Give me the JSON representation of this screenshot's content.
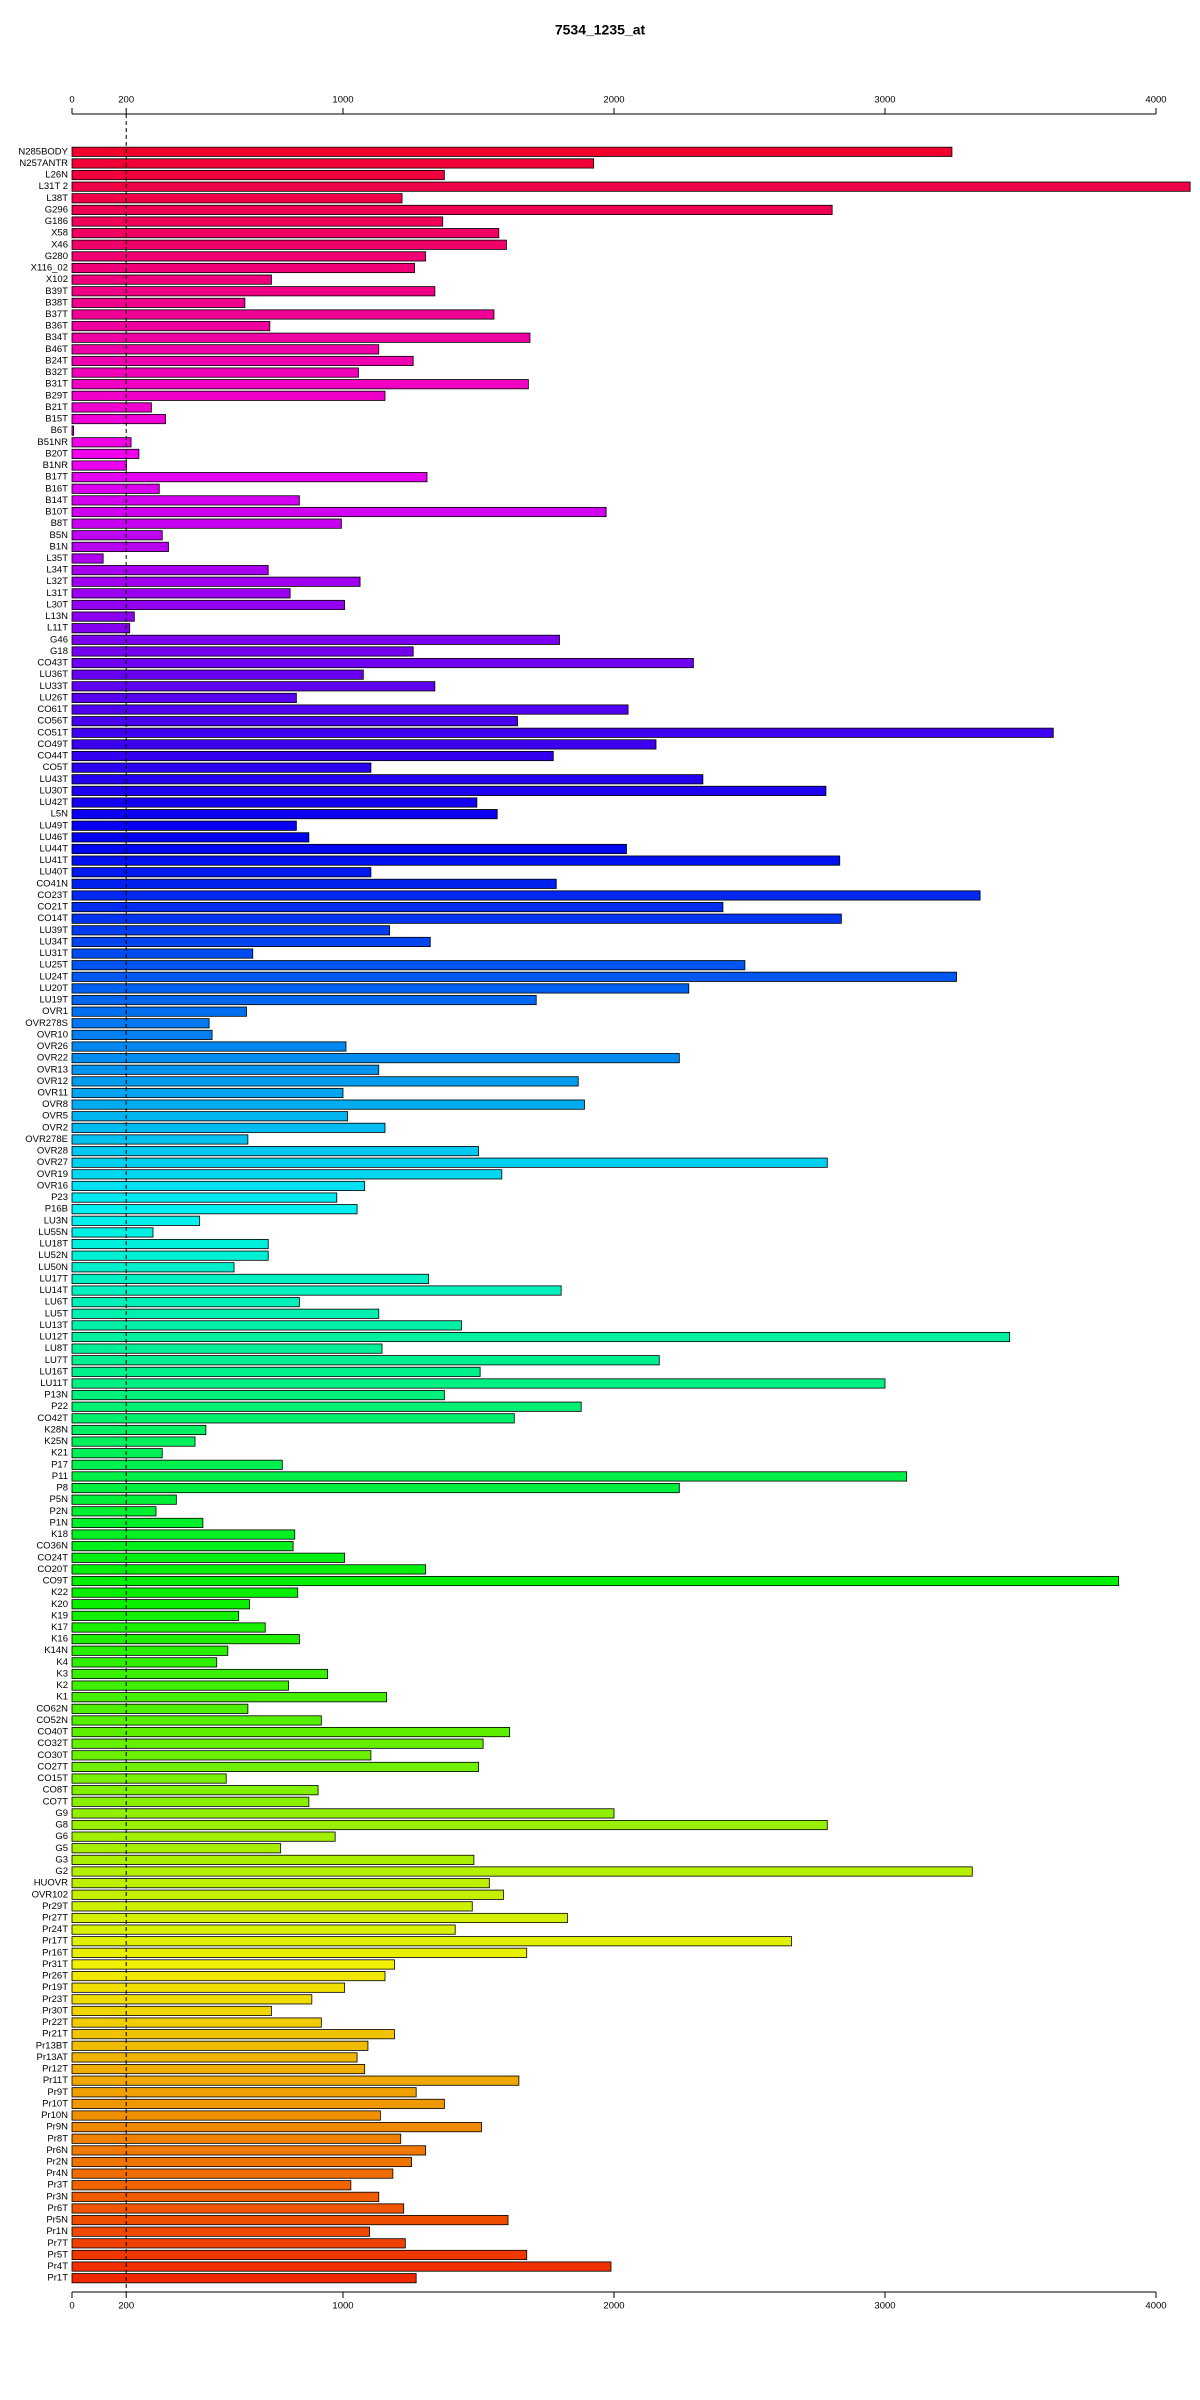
{
  "chart_data": {
    "type": "hbar",
    "title": "7534_1235_at",
    "categories": [
      "N285BODY",
      "N257ANTR",
      "L26N",
      "L31T 2",
      "L38T",
      "G296",
      "G186",
      "X58",
      "X46",
      "G280",
      "X116_02",
      "X102",
      "B39T",
      "B38T",
      "B37T",
      "B36T",
      "B34T",
      "B46T",
      "B24T",
      "B32T",
      "B31T",
      "B29T",
      "B21T",
      "B15T",
      "B6T",
      "B51NR",
      "B20T",
      "B1NR",
      "B17T",
      "B16T",
      "B14T",
      "B10T",
      "B8T",
      "B5N",
      "B1N",
      "L35T",
      "L34T",
      "L32T",
      "L31T",
      "L30T",
      "L13N",
      "L11T",
      "G46",
      "G18",
      "CO43T",
      "LU36T",
      "LU33T",
      "LU26T",
      "CO61T",
      "CO56T",
      "CO51T",
      "CO49T",
      "CO44T",
      "CO5T",
      "LU43T",
      "LU30T",
      "LU42T",
      "L5N",
      "LU49T",
      "LU46T",
      "LU44T",
      "LU41T",
      "LU40T",
      "CO41N",
      "CO23T",
      "CO21T",
      "CO14T",
      "LU39T",
      "LU34T",
      "LU31T",
      "LU25T",
      "LU24T",
      "LU20T",
      "LU19T",
      "OVR1",
      "OVR278S",
      "OVR10",
      "OVR26",
      "OVR22",
      "OVR13",
      "OVR12",
      "OVR11",
      "OVR8",
      "OVR5",
      "OVR2",
      "OVR278E",
      "OVR28",
      "OVR27",
      "OVR19",
      "OVR16",
      "P23",
      "P16B",
      "LU3N",
      "LU55N",
      "LU18T",
      "LU52N",
      "LU50N",
      "LU17T",
      "LU14T",
      "LU6T",
      "LU5T",
      "LU13T",
      "LU12T",
      "LU8T",
      "LU7T",
      "LU16T",
      "LU11T",
      "P13N",
      "P22",
      "CO42T",
      "K28N",
      "K25N",
      "K21",
      "P17",
      "P11",
      "P8",
      "P5N",
      "P2N",
      "P1N",
      "K18",
      "CO36N",
      "CO24T",
      "CO20T",
      "CO9T",
      "K22",
      "K20",
      "K19",
      "K17",
      "K16",
      "K14N",
      "K4",
      "K3",
      "K2",
      "K1",
      "CO62N",
      "CO52N",
      "CO40T",
      "CO32T",
      "CO30T",
      "CO27T",
      "CO15T",
      "CO8T",
      "CO7T",
      "G9",
      "G8",
      "G6",
      "G5",
      "G3",
      "G2",
      "HUOVR",
      "OVR102",
      "Pr29T",
      "Pr27T",
      "Pr24T",
      "Pr17T",
      "Pr16T",
      "Pr31T",
      "Pr26T",
      "Pr19T",
      "Pr23T",
      "Pr30T",
      "Pr22T",
      "Pr21T",
      "Pr13BT",
      "Pr13AT",
      "Pr12T",
      "Pr11T",
      "Pr9T",
      "Pr10T",
      "Pr10N",
      "Pr9N",
      "Pr8T",
      "Pr6N",
      "Pr2N",
      "Pr4N",
      "Pr3T",
      "Pr3N",
      "Pr6T",
      "Pr5N",
      "Pr1N",
      "Pr7T",
      "Pr5T",
      "Pr4T",
      "Pr1T"
    ],
    "values": [
      3247,
      1925,
      1374,
      4126,
      1218,
      2805,
      1368,
      1575,
      1603,
      1305,
      1264,
      736,
      1339,
      638,
      1557,
      730,
      1690,
      1132,
      1259,
      1057,
      1684,
      1155,
      293,
      345,
      6,
      218,
      247,
      201,
      1310,
      322,
      839,
      1971,
      994,
      333,
      356,
      115,
      724,
      1063,
      805,
      1006,
      230,
      213,
      1799,
      1259,
      2293,
      1075,
      1339,
      828,
      2052,
      1644,
      3621,
      2155,
      1776,
      1103,
      2328,
      2782,
      1494,
      1569,
      828,
      874,
      2046,
      2833,
      1103,
      1787,
      3351,
      2402,
      2839,
      1172,
      1322,
      667,
      2483,
      3264,
      2276,
      1713,
      644,
      506,
      517,
      1011,
      2241,
      1132,
      1868,
      1000,
      1891,
      1017,
      1155,
      649,
      1500,
      2787,
      1586,
      1080,
      977,
      1052,
      471,
      299,
      724,
      724,
      598,
      1316,
      1805,
      839,
      1132,
      1437,
      3460,
      1144,
      2167,
      1506,
      3000,
      1374,
      1879,
      1632,
      494,
      454,
      333,
      776,
      3080,
      2241,
      385,
      310,
      483,
      822,
      816,
      1006,
      1305,
      3862,
      833,
      655,
      615,
      713,
      839,
      575,
      534,
      943,
      799,
      1161,
      649,
      920,
      1615,
      1517,
      1103,
      1500,
      569,
      908,
      874,
      2000,
      2787,
      971,
      770,
      1483,
      3322,
      1540,
      1592,
      1477,
      1828,
      1414,
      2655,
      1678,
      1190,
      1155,
      1006,
      885,
      736,
      920,
      1190,
      1092,
      1052,
      1080,
      1649,
      1270,
      1374,
      1138,
      1511,
      1213,
      1305,
      1253,
      1184,
      1029,
      1132,
      1224,
      1609,
      1098,
      1230,
      1678,
      1989,
      1270
    ],
    "colors": [
      "hsl(349,100%,47%)",
      "hsl(347,100%,47%)",
      "hsl(345,100%,47%)",
      "hsl(343,100%,47%)",
      "hsl(342,100%,47%)",
      "hsl(340,100%,47%)",
      "hsl(338,100%,47%)",
      "hsl(336,100%,47%)",
      "hsl(334,100%,47%)",
      "hsl(332,100%,47%)",
      "hsl(330,100%,47%)",
      "hsl(329,100%,47%)",
      "hsl(327,100%,47%)",
      "hsl(325,100%,47%)",
      "hsl(323,100%,47%)",
      "hsl(321,100%,47%)",
      "hsl(319,100%,47%)",
      "hsl(318,100%,47%)",
      "hsl(316,100%,47%)",
      "hsl(314,100%,47%)",
      "hsl(312,100%,47%)",
      "hsl(310,100%,47%)",
      "hsl(308,100%,47%)",
      "hsl(306,100%,47%)",
      "hsl(305,100%,47%)",
      "hsl(303,100%,47%)",
      "hsl(301,100%,47%)",
      "hsl(299,100%,47%)",
      "hsl(297,100%,47%)",
      "hsl(295,100%,47%)",
      "hsl(293,100%,47%)",
      "hsl(292,100%,47%)",
      "hsl(290,100%,47%)",
      "hsl(288,100%,47%)",
      "hsl(286,100%,47%)",
      "hsl(284,100%,47%)",
      "hsl(282,100%,47%)",
      "hsl(280,100%,47%)",
      "hsl(279,100%,47%)",
      "hsl(277,100%,47%)",
      "hsl(275,100%,47%)",
      "hsl(273,100%,47%)",
      "hsl(271,100%,47%)",
      "hsl(269,100%,47%)",
      "hsl(268,100%,47%)",
      "hsl(266,100%,47%)",
      "hsl(264,100%,47%)",
      "hsl(262,100%,47%)",
      "hsl(260,100%,47%)",
      "hsl(258,100%,47%)",
      "hsl(256,100%,47%)",
      "hsl(255,100%,47%)",
      "hsl(253,100%,47%)",
      "hsl(251,100%,47%)",
      "hsl(249,100%,47%)",
      "hsl(247,100%,47%)",
      "hsl(245,100%,47%)",
      "hsl(243,100%,47%)",
      "hsl(242,100%,47%)",
      "hsl(240,100%,47%)",
      "hsl(238,100%,47%)",
      "hsl(236,100%,47%)",
      "hsl(234,100%,47%)",
      "hsl(232,100%,47%)",
      "hsl(230,100%,47%)",
      "hsl(229,100%,47%)",
      "hsl(227,100%,47%)",
      "hsl(225,100%,47%)",
      "hsl(223,100%,47%)",
      "hsl(221,100%,47%)",
      "hsl(219,100%,47%)",
      "hsl(218,100%,47%)",
      "hsl(216,100%,47%)",
      "hsl(214,100%,47%)",
      "hsl(212,100%,47%)",
      "hsl(210,100%,47%)",
      "hsl(208,100%,47%)",
      "hsl(206,100%,47%)",
      "hsl(205,100%,47%)",
      "hsl(203,100%,47%)",
      "hsl(201,100%,47%)",
      "hsl(199,100%,47%)",
      "hsl(197,100%,47%)",
      "hsl(195,100%,47%)",
      "hsl(193,100%,47%)",
      "hsl(192,100%,47%)",
      "hsl(190,100%,47%)",
      "hsl(188,100%,47%)",
      "hsl(186,100%,47%)",
      "hsl(184,100%,47%)",
      "hsl(182,100%,47%)",
      "hsl(180,100%,47%)",
      "hsl(179,100%,47%)",
      "hsl(177,100%,47%)",
      "hsl(175,100%,47%)",
      "hsl(173,100%,47%)",
      "hsl(171,100%,47%)",
      "hsl(169,100%,47%)",
      "hsl(168,100%,47%)",
      "hsl(166,100%,47%)",
      "hsl(164,100%,47%)",
      "hsl(162,100%,47%)",
      "hsl(160,100%,47%)",
      "hsl(158,100%,47%)",
      "hsl(156,100%,47%)",
      "hsl(155,100%,47%)",
      "hsl(153,100%,47%)",
      "hsl(151,100%,47%)",
      "hsl(149,100%,47%)",
      "hsl(147,100%,47%)",
      "hsl(145,100%,47%)",
      "hsl(143,100%,47%)",
      "hsl(142,100%,47%)",
      "hsl(140,100%,47%)",
      "hsl(138,100%,47%)",
      "hsl(136,100%,47%)",
      "hsl(134,100%,47%)",
      "hsl(132,100%,47%)",
      "hsl(131,100%,47%)",
      "hsl(129,100%,47%)",
      "hsl(127,100%,47%)",
      "hsl(125,100%,47%)",
      "hsl(123,100%,47%)",
      "hsl(121,100%,47%)",
      "hsl(119,100%,47%)",
      "hsl(118,100%,47%)",
      "hsl(116,100%,47%)",
      "hsl(114,100%,47%)",
      "hsl(112,100%,47%)",
      "hsl(110,100%,47%)",
      "hsl(108,100%,47%)",
      "hsl(106,100%,47%)",
      "hsl(105,100%,47%)",
      "hsl(103,100%,47%)",
      "hsl(101,100%,47%)",
      "hsl(99,100%,47%)",
      "hsl(97,100%,47%)",
      "hsl(95,100%,47%)",
      "hsl(93,100%,47%)",
      "hsl(92,100%,47%)",
      "hsl(90,100%,47%)",
      "hsl(88,100%,47%)",
      "hsl(86,100%,47%)",
      "hsl(84,100%,47%)",
      "hsl(82,100%,47%)",
      "hsl(80,100%,47%)",
      "hsl(79,100%,47%)",
      "hsl(77,100%,47%)",
      "hsl(75,100%,47%)",
      "hsl(73,100%,47%)",
      "hsl(71,100%,47%)",
      "hsl(69,100%,47%)",
      "hsl(67,100%,47%)",
      "hsl(66,100%,47%)",
      "hsl(64,100%,47%)",
      "hsl(62,100%,47%)",
      "hsl(60,100%,47%)",
      "hsl(58,100%,47%)",
      "hsl(56,100%,47%)",
      "hsl(55,100%,47%)",
      "hsl(53,100%,47%)",
      "hsl(51,100%,47%)",
      "hsl(49,100%,47%)",
      "hsl(47,100%,47%)",
      "hsl(45,100%,47%)",
      "hsl(43,100%,47%)",
      "hsl(42,100%,47%)",
      "hsl(40,100%,47%)",
      "hsl(38,100%,47%)",
      "hsl(36,100%,47%)",
      "hsl(34,100%,47%)",
      "hsl(32,100%,47%)",
      "hsl(30,100%,47%)",
      "hsl(29,100%,47%)",
      "hsl(27,100%,47%)",
      "hsl(25,100%,47%)",
      "hsl(23,100%,47%)",
      "hsl(21,100%,47%)",
      "hsl(19,100%,47%)",
      "hsl(18,100%,47%)",
      "hsl(16,100%,47%)",
      "hsl(14,100%,47%)",
      "hsl(12,100%,47%)",
      "hsl(10,100%,47%)"
    ],
    "xlim": [
      0,
      4000
    ],
    "xticks": [
      0,
      200,
      1000,
      2000,
      3000,
      4000
    ],
    "reference_line": 200
  }
}
